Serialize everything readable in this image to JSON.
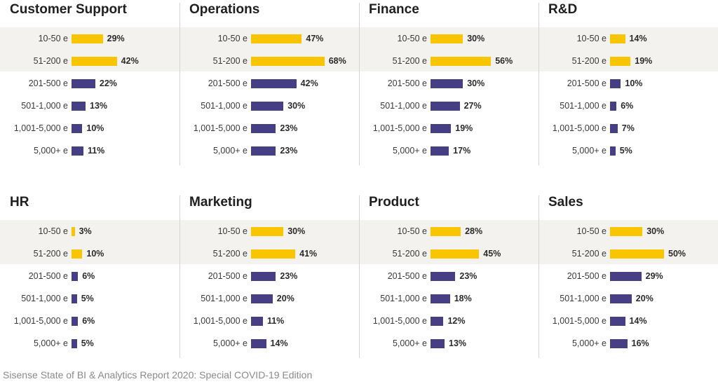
{
  "colors": {
    "highlight": "#f8c500",
    "default": "#463f83",
    "band": "#f3f2ee"
  },
  "source": "Sisense State of BI & Analytics Report 2020: Special COVID-19 Edition",
  "chart_data": [
    {
      "type": "bar",
      "orientation": "horizontal",
      "title": "Customer Support",
      "categories": [
        "10-50 e",
        "51-200 e",
        "201-500 e",
        "501-1,000 e",
        "1,001-5,000 e",
        "5,000+ e"
      ],
      "values": [
        29,
        42,
        22,
        13,
        10,
        11
      ],
      "value_labels": [
        "29%",
        "42%",
        "22%",
        "13%",
        "10%",
        "11%"
      ],
      "highlight_categories": [
        "10-50 e",
        "51-200 e"
      ]
    },
    {
      "type": "bar",
      "orientation": "horizontal",
      "title": "Operations",
      "categories": [
        "10-50 e",
        "51-200 e",
        "201-500 e",
        "501-1,000 e",
        "1,001-5,000 e",
        "5,000+ e"
      ],
      "values": [
        47,
        68,
        42,
        30,
        23,
        23
      ],
      "value_labels": [
        "47%",
        "68%",
        "42%",
        "30%",
        "23%",
        "23%"
      ],
      "highlight_categories": [
        "10-50 e",
        "51-200 e"
      ]
    },
    {
      "type": "bar",
      "orientation": "horizontal",
      "title": "Finance",
      "categories": [
        "10-50 e",
        "51-200 e",
        "201-500 e",
        "501-1,000 e",
        "1,001-5,000 e",
        "5,000+ e"
      ],
      "values": [
        30,
        56,
        30,
        27,
        19,
        17
      ],
      "value_labels": [
        "30%",
        "56%",
        "30%",
        "27%",
        "19%",
        "17%"
      ],
      "highlight_categories": [
        "10-50 e",
        "51-200 e"
      ]
    },
    {
      "type": "bar",
      "orientation": "horizontal",
      "title": "R&D",
      "categories": [
        "10-50 e",
        "51-200 e",
        "201-500 e",
        "501-1,000 e",
        "1,001-5,000 e",
        "5,000+ e"
      ],
      "values": [
        14,
        19,
        10,
        6,
        7,
        5
      ],
      "value_labels": [
        "14%",
        "19%",
        "10%",
        "6%",
        "7%",
        "5%"
      ],
      "highlight_categories": [
        "10-50 e",
        "51-200 e"
      ]
    },
    {
      "type": "bar",
      "orientation": "horizontal",
      "title": "HR",
      "categories": [
        "10-50 e",
        "51-200 e",
        "201-500 e",
        "501-1,000 e",
        "1,001-5,000 e",
        "5,000+ e"
      ],
      "values": [
        3,
        10,
        6,
        5,
        6,
        5
      ],
      "value_labels": [
        "3%",
        "10%",
        "6%",
        "5%",
        "6%",
        "5%"
      ],
      "highlight_categories": [
        "10-50 e",
        "51-200 e"
      ]
    },
    {
      "type": "bar",
      "orientation": "horizontal",
      "title": "Marketing",
      "categories": [
        "10-50 e",
        "51-200 e",
        "201-500 e",
        "501-1,000 e",
        "1,001-5,000 e",
        "5,000+ e"
      ],
      "values": [
        30,
        41,
        23,
        20,
        11,
        14
      ],
      "value_labels": [
        "30%",
        "41%",
        "23%",
        "20%",
        "11%",
        "14%"
      ],
      "highlight_categories": [
        "10-50 e",
        "51-200 e"
      ]
    },
    {
      "type": "bar",
      "orientation": "horizontal",
      "title": "Product",
      "categories": [
        "10-50 e",
        "51-200 e",
        "201-500 e",
        "501-1,000 e",
        "1,001-5,000 e",
        "5,000+ e"
      ],
      "values": [
        28,
        45,
        23,
        18,
        12,
        13
      ],
      "value_labels": [
        "28%",
        "45%",
        "23%",
        "18%",
        "12%",
        "13%"
      ],
      "highlight_categories": [
        "10-50 e",
        "51-200 e"
      ]
    },
    {
      "type": "bar",
      "orientation": "horizontal",
      "title": "Sales",
      "categories": [
        "10-50 e",
        "51-200 e",
        "201-500 e",
        "501-1,000 e",
        "1,001-5,000 e",
        "5,000+ e"
      ],
      "values": [
        30,
        50,
        29,
        20,
        14,
        16
      ],
      "value_labels": [
        "30%",
        "50%",
        "29%",
        "20%",
        "14%",
        "16%"
      ],
      "highlight_categories": [
        "10-50 e",
        "51-200 e"
      ]
    }
  ]
}
